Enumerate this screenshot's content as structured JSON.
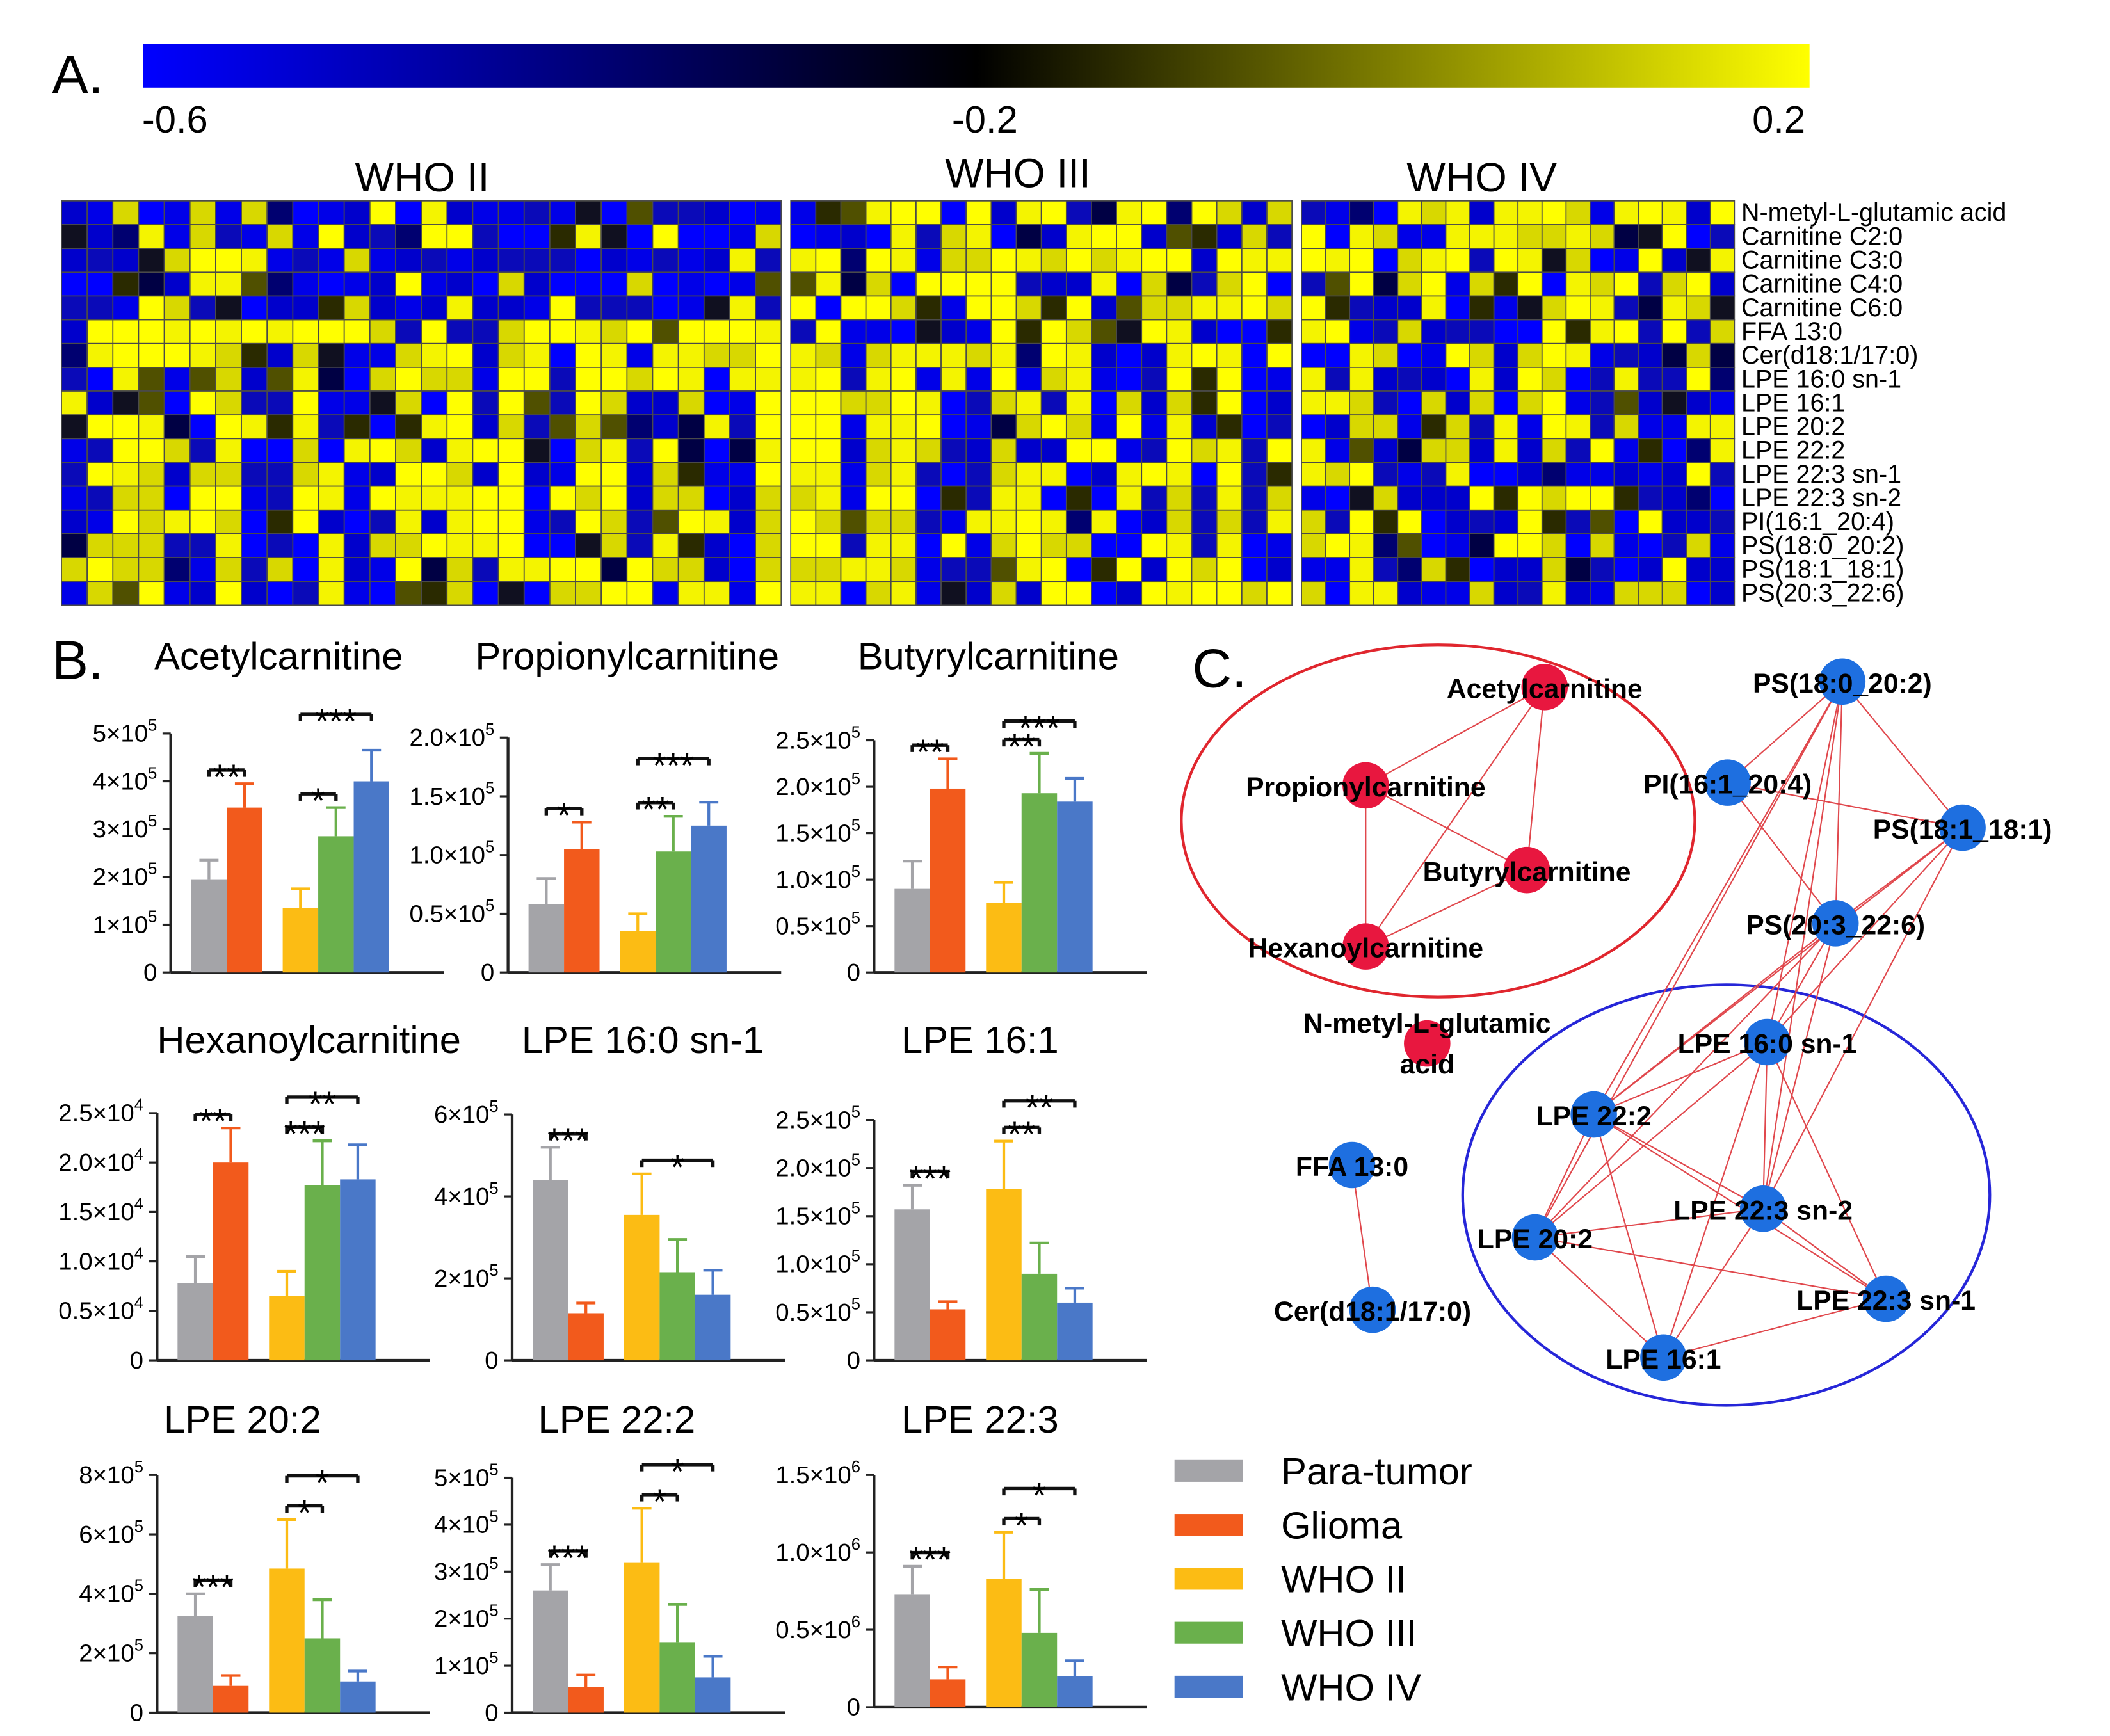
{
  "panels": {
    "a": "A.",
    "b": "B.",
    "c": "C."
  },
  "colorbar": {
    "min_label": "-0.6",
    "mid_label": "-0.2",
    "max_label": "0.2",
    "colors": [
      "#0000ff",
      "#000000",
      "#ffff00"
    ]
  },
  "heatmap": {
    "groups": [
      {
        "label": "WHO II",
        "columns": 28
      },
      {
        "label": "WHO III",
        "columns": 20
      },
      {
        "label": "WHO IV",
        "columns": 18
      }
    ],
    "rows": [
      "N-metyl-L-glutamic acid",
      "Carnitine C2:0",
      "Carnitine C3:0",
      "Carnitine C4:0",
      "Carnitine C6:0",
      "FFA 13:0",
      "Cer(d18:1/17:0)",
      "LPE 16:0 sn-1",
      "LPE 16:1",
      "LPE 20:2",
      "LPE 22:2",
      "LPE 22:3 sn-1",
      "LPE 22:3 sn-2",
      "PI(16:1_20:4)",
      "PS(18:0_20:2)",
      "PS(18:1_18:1)",
      "PS(20:3_22:6)"
    ]
  },
  "legend": {
    "items": [
      {
        "label": "Para-tumor",
        "color": "#a4a4a8"
      },
      {
        "label": "Glioma",
        "color": "#f25a1c"
      },
      {
        "label": "WHO II",
        "color": "#fcbc14"
      },
      {
        "label": "WHO III",
        "color": "#6ab04c"
      },
      {
        "label": "WHO IV",
        "color": "#4a78c8"
      }
    ]
  },
  "network": {
    "nodes": [
      {
        "id": "acetyl",
        "label": "Acetylcarnitine",
        "color": "#e8173f"
      },
      {
        "id": "propionyl",
        "label": "Propionylcarnitine",
        "color": "#e8173f"
      },
      {
        "id": "butyryl",
        "label": "Butyrylcarnitine",
        "color": "#e8173f"
      },
      {
        "id": "hexanoyl",
        "label": "Hexanoylcarnitine",
        "color": "#e8173f"
      },
      {
        "id": "nmlg",
        "label": "N-metyl-L-glutamic",
        "label2": "acid",
        "color": "#e8173f"
      },
      {
        "id": "ffa",
        "label": "FFA 13:0",
        "color": "#1e6fe0"
      },
      {
        "id": "cer",
        "label": "Cer(d18:1/17:0)",
        "color": "#1e6fe0"
      },
      {
        "id": "ps1802",
        "label": "PS(18:0_20:2)",
        "color": "#1e6fe0"
      },
      {
        "id": "pi",
        "label": "PI(16:1_20:4)",
        "color": "#1e6fe0"
      },
      {
        "id": "ps1818",
        "label": "PS(18:1_18:1)",
        "color": "#1e6fe0"
      },
      {
        "id": "ps2022",
        "label": "PS(20:3_22:6)",
        "color": "#1e6fe0"
      },
      {
        "id": "lpe160",
        "label": "LPE 16:0 sn-1",
        "color": "#1e6fe0"
      },
      {
        "id": "lpe222",
        "label": "LPE 22:2",
        "color": "#1e6fe0"
      },
      {
        "id": "lpe223sn2",
        "label": "LPE 22:3 sn-2",
        "color": "#1e6fe0"
      },
      {
        "id": "lpe202",
        "label": "LPE 20:2",
        "color": "#1e6fe0"
      },
      {
        "id": "lpe223sn1",
        "label": "LPE 22:3 sn-1",
        "color": "#1e6fe0"
      },
      {
        "id": "lpe161",
        "label": "LPE 16:1",
        "color": "#1e6fe0"
      }
    ],
    "edges": [
      [
        "acetyl",
        "propionyl"
      ],
      [
        "acetyl",
        "butyryl"
      ],
      [
        "acetyl",
        "hexanoyl"
      ],
      [
        "propionyl",
        "butyryl"
      ],
      [
        "propionyl",
        "hexanoyl"
      ],
      [
        "butyryl",
        "hexanoyl"
      ],
      [
        "ffa",
        "cer"
      ],
      [
        "ps1802",
        "pi"
      ],
      [
        "ps1802",
        "ps1818"
      ],
      [
        "ps1802",
        "ps2022"
      ],
      [
        "pi",
        "ps1818"
      ],
      [
        "pi",
        "ps2022"
      ],
      [
        "ps1818",
        "ps2022"
      ],
      [
        "ps1802",
        "lpe160"
      ],
      [
        "ps1802",
        "lpe222"
      ],
      [
        "ps1802",
        "lpe202"
      ],
      [
        "ps1802",
        "lpe223sn2"
      ],
      [
        "ps1818",
        "lpe160"
      ],
      [
        "ps1818",
        "lpe222"
      ],
      [
        "ps1818",
        "lpe223sn2"
      ],
      [
        "ps2022",
        "lpe160"
      ],
      [
        "ps2022",
        "lpe222"
      ],
      [
        "ps2022",
        "lpe202"
      ],
      [
        "ps2022",
        "lpe223sn2"
      ],
      [
        "lpe160",
        "lpe222"
      ],
      [
        "lpe160",
        "lpe223sn2"
      ],
      [
        "lpe160",
        "lpe202"
      ],
      [
        "lpe160",
        "lpe223sn1"
      ],
      [
        "lpe160",
        "lpe161"
      ],
      [
        "lpe222",
        "lpe223sn2"
      ],
      [
        "lpe222",
        "lpe202"
      ],
      [
        "lpe222",
        "lpe223sn1"
      ],
      [
        "lpe222",
        "lpe161"
      ],
      [
        "lpe223sn2",
        "lpe202"
      ],
      [
        "lpe223sn2",
        "lpe223sn1"
      ],
      [
        "lpe223sn2",
        "lpe161"
      ],
      [
        "lpe202",
        "lpe223sn1"
      ],
      [
        "lpe202",
        "lpe161"
      ],
      [
        "lpe223sn1",
        "lpe161"
      ]
    ]
  },
  "chart_data": [
    {
      "type": "bar",
      "title": "Acetylcarnitine",
      "ymax": 5,
      "exp": 5,
      "yticks": [
        {
          "v": 0,
          "m": "0"
        },
        {
          "v": 1,
          "m": "1×10"
        },
        {
          "v": 2,
          "m": "2×10"
        },
        {
          "v": 3,
          "m": "3×10"
        },
        {
          "v": 4,
          "m": "4×10"
        },
        {
          "v": 5,
          "m": "5×10"
        }
      ],
      "series": [
        "Para-tumor",
        "Glioma",
        "WHO II",
        "WHO III",
        "WHO IV"
      ],
      "values": [
        1.95,
        3.45,
        1.35,
        2.85,
        4.0
      ],
      "errors": [
        0.4,
        0.5,
        0.4,
        0.6,
        0.65
      ],
      "sig": [
        {
          "a": 0,
          "b": 1,
          "label": "**",
          "level": 0
        },
        {
          "a": 2,
          "b": 3,
          "label": "*",
          "level": 0
        },
        {
          "a": 2,
          "b": 4,
          "label": "***",
          "level": 1
        }
      ]
    },
    {
      "type": "bar",
      "title": "Propionylcarnitine",
      "ymax": 2.0,
      "exp": 5,
      "yticks": [
        {
          "v": 0,
          "m": "0"
        },
        {
          "v": 0.5,
          "m": "0.5×10"
        },
        {
          "v": 1.0,
          "m": "1.0×10"
        },
        {
          "v": 1.5,
          "m": "1.5×10"
        },
        {
          "v": 2.0,
          "m": "2.0×10"
        }
      ],
      "series": [
        "Para-tumor",
        "Glioma",
        "WHO II",
        "WHO III",
        "WHO IV"
      ],
      "values": [
        0.58,
        1.05,
        0.35,
        1.03,
        1.25
      ],
      "errors": [
        0.22,
        0.23,
        0.15,
        0.3,
        0.2
      ],
      "sig": [
        {
          "a": 0,
          "b": 1,
          "label": "*",
          "level": 0
        },
        {
          "a": 2,
          "b": 3,
          "label": "**",
          "level": 0
        },
        {
          "a": 2,
          "b": 4,
          "label": "***",
          "level": 1
        }
      ]
    },
    {
      "type": "bar",
      "title": "Butyrylcarnitine",
      "ymax": 2.5,
      "exp": 5,
      "yticks": [
        {
          "v": 0,
          "m": "0"
        },
        {
          "v": 0.5,
          "m": "0.5×10"
        },
        {
          "v": 1.0,
          "m": "1.0×10"
        },
        {
          "v": 1.5,
          "m": "1.5×10"
        },
        {
          "v": 2.0,
          "m": "2.0×10"
        },
        {
          "v": 2.5,
          "m": "2.5×10"
        }
      ],
      "series": [
        "Para-tumor",
        "Glioma",
        "WHO II",
        "WHO III",
        "WHO IV"
      ],
      "values": [
        0.9,
        1.98,
        0.75,
        1.93,
        1.84
      ],
      "errors": [
        0.3,
        0.32,
        0.22,
        0.43,
        0.25
      ],
      "sig": [
        {
          "a": 0,
          "b": 1,
          "label": "**",
          "level": 0
        },
        {
          "a": 2,
          "b": 3,
          "label": "**",
          "level": 0
        },
        {
          "a": 2,
          "b": 4,
          "label": "***",
          "level": 1
        }
      ]
    },
    {
      "type": "bar",
      "title": "Hexanoylcarnitine",
      "ymax": 2.5,
      "exp": 4,
      "yticks": [
        {
          "v": 0,
          "m": "0"
        },
        {
          "v": 0.5,
          "m": "0.5×10"
        },
        {
          "v": 1.0,
          "m": "1.0×10"
        },
        {
          "v": 1.5,
          "m": "1.5×10"
        },
        {
          "v": 2.0,
          "m": "2.0×10"
        },
        {
          "v": 2.5,
          "m": "2.5×10"
        }
      ],
      "series": [
        "Para-tumor",
        "Glioma",
        "WHO II",
        "WHO III",
        "WHO IV"
      ],
      "values": [
        0.78,
        2.0,
        0.65,
        1.77,
        1.83
      ],
      "errors": [
        0.27,
        0.35,
        0.25,
        0.45,
        0.35
      ],
      "sig": [
        {
          "a": 0,
          "b": 1,
          "label": "**",
          "level": 0
        },
        {
          "a": 2,
          "b": 3,
          "label": "***",
          "level": 0
        },
        {
          "a": 2,
          "b": 4,
          "label": "**",
          "level": 1
        }
      ]
    },
    {
      "type": "bar",
      "title": "LPE 16:0 sn-1",
      "ymax": 6,
      "exp": 5,
      "yticks": [
        {
          "v": 0,
          "m": "0"
        },
        {
          "v": 2,
          "m": "2×10"
        },
        {
          "v": 4,
          "m": "4×10"
        },
        {
          "v": 6,
          "m": "6×10"
        }
      ],
      "series": [
        "Para-tumor",
        "Glioma",
        "WHO II",
        "WHO III",
        "WHO IV"
      ],
      "values": [
        4.4,
        1.15,
        3.55,
        2.15,
        1.6
      ],
      "errors": [
        0.8,
        0.25,
        1.0,
        0.8,
        0.6
      ],
      "sig": [
        {
          "a": 0,
          "b": 1,
          "label": "***",
          "level": 0
        },
        {
          "a": 2,
          "b": 4,
          "label": "*",
          "level": 0
        }
      ]
    },
    {
      "type": "bar",
      "title": "LPE 16:1",
      "ymax": 2.5,
      "exp": 5,
      "yticks": [
        {
          "v": 0,
          "m": "0"
        },
        {
          "v": 0.5,
          "m": "0.5×10"
        },
        {
          "v": 1.0,
          "m": "1.0×10"
        },
        {
          "v": 1.5,
          "m": "1.5×10"
        },
        {
          "v": 2.0,
          "m": "2.0×10"
        },
        {
          "v": 2.5,
          "m": "2.5×10"
        }
      ],
      "series": [
        "Para-tumor",
        "Glioma",
        "WHO II",
        "WHO III",
        "WHO IV"
      ],
      "values": [
        1.57,
        0.53,
        1.78,
        0.9,
        0.6
      ],
      "errors": [
        0.25,
        0.08,
        0.5,
        0.32,
        0.15
      ],
      "sig": [
        {
          "a": 0,
          "b": 1,
          "label": "***",
          "level": 0
        },
        {
          "a": 2,
          "b": 3,
          "label": "**",
          "level": 0
        },
        {
          "a": 2,
          "b": 4,
          "label": "**",
          "level": 1
        }
      ]
    },
    {
      "type": "bar",
      "title": "LPE 20:2",
      "ymax": 8,
      "exp": 5,
      "yticks": [
        {
          "v": 0,
          "m": "0"
        },
        {
          "v": 2,
          "m": "2×10"
        },
        {
          "v": 4,
          "m": "4×10"
        },
        {
          "v": 6,
          "m": "6×10"
        },
        {
          "v": 8,
          "m": "8×10"
        }
      ],
      "series": [
        "Para-tumor",
        "Glioma",
        "WHO II",
        "WHO III",
        "WHO IV"
      ],
      "values": [
        3.25,
        0.9,
        4.85,
        2.5,
        1.05
      ],
      "errors": [
        0.75,
        0.35,
        1.65,
        1.3,
        0.35
      ],
      "sig": [
        {
          "a": 0,
          "b": 1,
          "label": "***",
          "level": 0
        },
        {
          "a": 2,
          "b": 3,
          "label": "*",
          "level": 0
        },
        {
          "a": 2,
          "b": 4,
          "label": "*",
          "level": 1
        }
      ]
    },
    {
      "type": "bar",
      "title": "LPE 22:2",
      "ymax": 5,
      "exp": 5,
      "yticks": [
        {
          "v": 0,
          "m": "0"
        },
        {
          "v": 1,
          "m": "1×10"
        },
        {
          "v": 2,
          "m": "2×10"
        },
        {
          "v": 3,
          "m": "3×10"
        },
        {
          "v": 4,
          "m": "4×10"
        },
        {
          "v": 5,
          "m": "5×10"
        }
      ],
      "series": [
        "Para-tumor",
        "Glioma",
        "WHO II",
        "WHO III",
        "WHO IV"
      ],
      "values": [
        2.6,
        0.55,
        3.2,
        1.5,
        0.75
      ],
      "errors": [
        0.55,
        0.25,
        1.15,
        0.8,
        0.45
      ],
      "sig": [
        {
          "a": 0,
          "b": 1,
          "label": "***",
          "level": 0
        },
        {
          "a": 2,
          "b": 3,
          "label": "*",
          "level": 0
        },
        {
          "a": 2,
          "b": 4,
          "label": "*",
          "level": 1
        }
      ]
    },
    {
      "type": "bar",
      "title": "LPE 22:3",
      "ymax": 1.5,
      "exp": 6,
      "yticks": [
        {
          "v": 0,
          "m": "0"
        },
        {
          "v": 0.5,
          "m": "0.5×10"
        },
        {
          "v": 1.0,
          "m": "1.0×10"
        },
        {
          "v": 1.5,
          "m": "1.5×10"
        }
      ],
      "series": [
        "Para-tumor",
        "Glioma",
        "WHO II",
        "WHO III",
        "WHO IV"
      ],
      "values": [
        0.73,
        0.18,
        0.83,
        0.48,
        0.2
      ],
      "errors": [
        0.18,
        0.08,
        0.3,
        0.28,
        0.1
      ],
      "sig": [
        {
          "a": 0,
          "b": 1,
          "label": "***",
          "level": 0
        },
        {
          "a": 2,
          "b": 3,
          "label": "*",
          "level": 0
        },
        {
          "a": 2,
          "b": 4,
          "label": "*",
          "level": 1
        }
      ]
    }
  ]
}
